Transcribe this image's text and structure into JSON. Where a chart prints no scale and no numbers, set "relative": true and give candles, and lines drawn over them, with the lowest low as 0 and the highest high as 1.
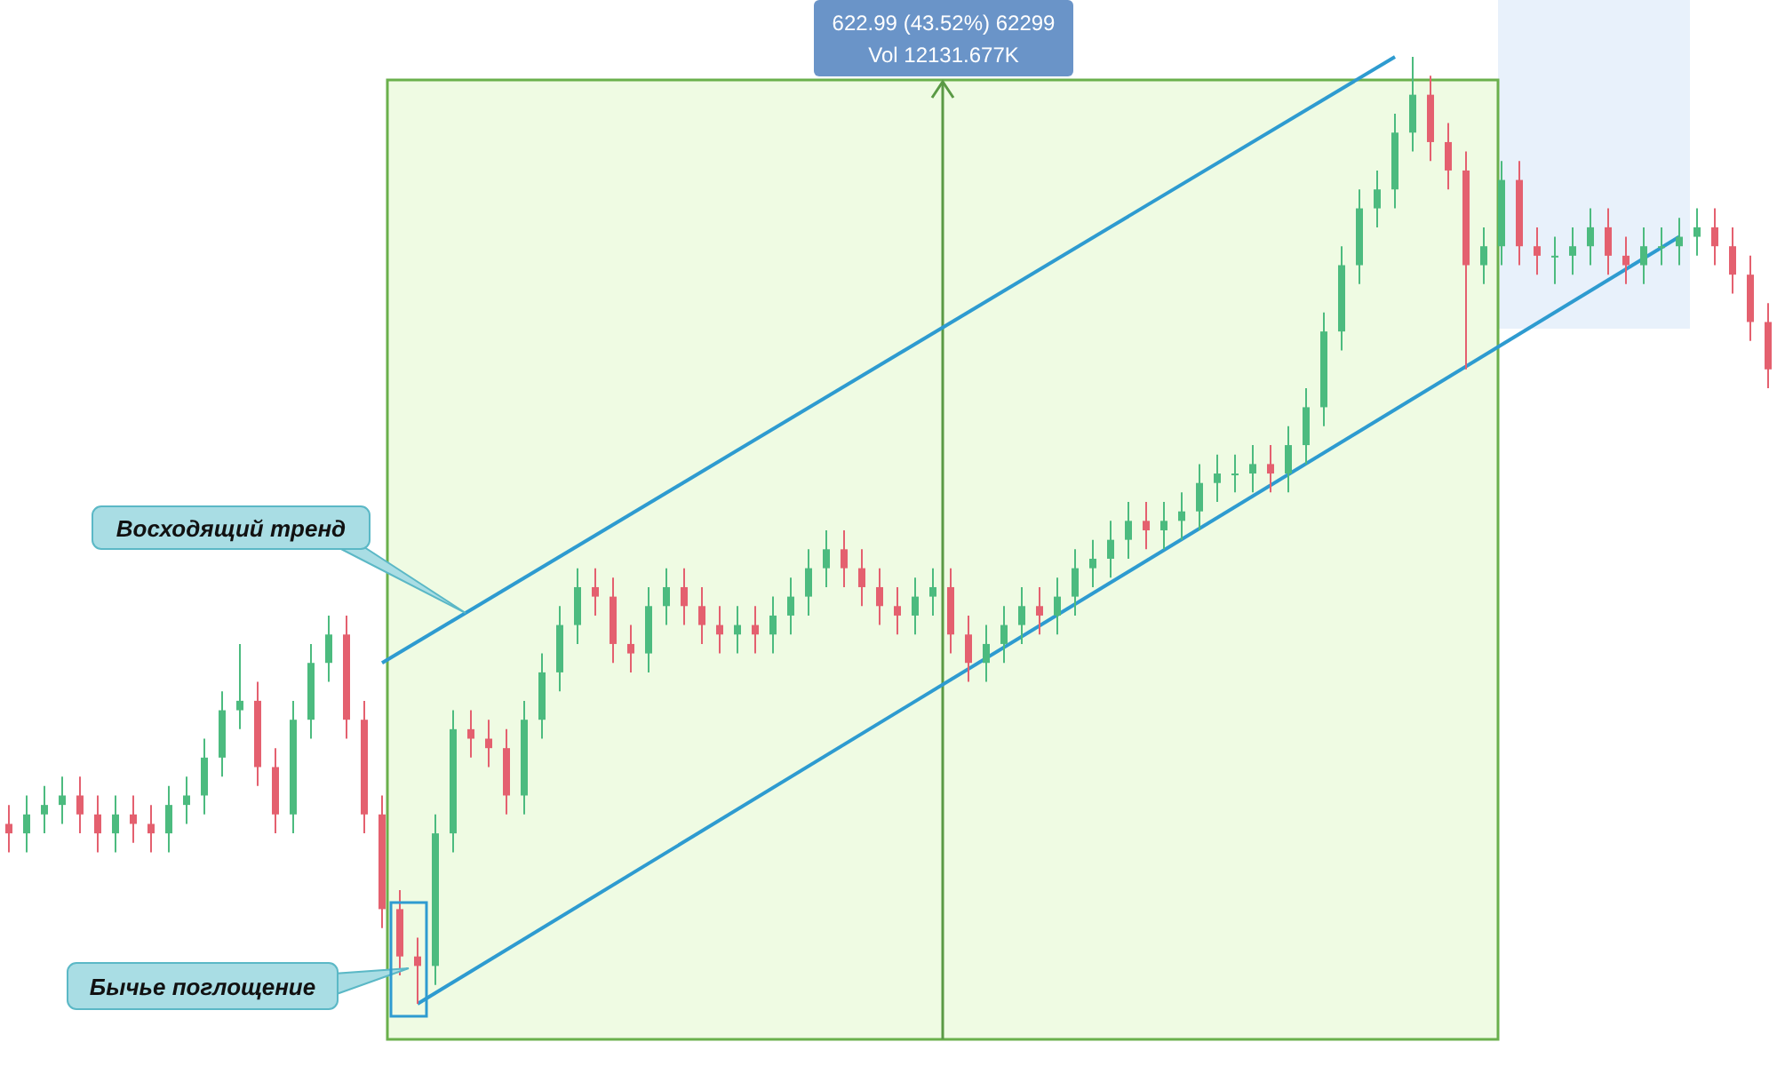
{
  "chart_data": {
    "type": "candlestick",
    "relative": true,
    "categories": [
      null,
      null,
      null,
      null,
      null,
      null,
      null,
      null,
      null,
      null,
      null,
      null,
      null,
      null,
      null,
      null,
      null,
      null,
      null,
      null,
      null,
      null,
      null,
      null,
      null,
      null,
      null,
      null,
      null,
      null,
      null,
      null,
      null,
      null,
      null,
      null,
      null,
      null,
      null,
      null,
      null,
      null,
      null,
      null,
      null,
      null,
      null,
      null,
      null,
      null,
      null,
      null,
      null,
      null,
      null,
      null,
      null,
      null,
      null,
      null,
      null,
      null,
      null,
      null,
      null,
      null,
      null,
      null,
      null,
      null,
      null,
      null,
      null,
      null,
      null,
      null,
      null,
      null,
      null,
      null,
      null,
      null,
      null,
      null,
      null,
      null,
      null,
      null,
      null,
      null,
      null,
      null,
      null,
      null,
      null,
      null,
      null,
      null,
      null,
      null
    ],
    "ohlc": [
      [
        0.19,
        0.21,
        0.16,
        0.18
      ],
      [
        0.18,
        0.22,
        0.16,
        0.2
      ],
      [
        0.2,
        0.23,
        0.18,
        0.21
      ],
      [
        0.21,
        0.24,
        0.19,
        0.22
      ],
      [
        0.22,
        0.24,
        0.18,
        0.2
      ],
      [
        0.2,
        0.22,
        0.16,
        0.18
      ],
      [
        0.18,
        0.22,
        0.16,
        0.2
      ],
      [
        0.2,
        0.22,
        0.17,
        0.19
      ],
      [
        0.19,
        0.21,
        0.16,
        0.18
      ],
      [
        0.18,
        0.23,
        0.16,
        0.21
      ],
      [
        0.21,
        0.24,
        0.19,
        0.22
      ],
      [
        0.22,
        0.28,
        0.2,
        0.26
      ],
      [
        0.26,
        0.33,
        0.24,
        0.31
      ],
      [
        0.31,
        0.38,
        0.29,
        0.32
      ],
      [
        0.32,
        0.34,
        0.23,
        0.25
      ],
      [
        0.25,
        0.27,
        0.18,
        0.2
      ],
      [
        0.2,
        0.32,
        0.18,
        0.3
      ],
      [
        0.3,
        0.38,
        0.28,
        0.36
      ],
      [
        0.36,
        0.41,
        0.34,
        0.39
      ],
      [
        0.39,
        0.41,
        0.28,
        0.3
      ],
      [
        0.3,
        0.32,
        0.18,
        0.2
      ],
      [
        0.2,
        0.22,
        0.08,
        0.1
      ],
      [
        0.1,
        0.12,
        0.03,
        0.05
      ],
      [
        0.05,
        0.07,
        0.0,
        0.04
      ],
      [
        0.04,
        0.2,
        0.02,
        0.18
      ],
      [
        0.18,
        0.31,
        0.16,
        0.29
      ],
      [
        0.29,
        0.31,
        0.26,
        0.28
      ],
      [
        0.28,
        0.3,
        0.25,
        0.27
      ],
      [
        0.27,
        0.29,
        0.2,
        0.22
      ],
      [
        0.22,
        0.32,
        0.2,
        0.3
      ],
      [
        0.3,
        0.37,
        0.28,
        0.35
      ],
      [
        0.35,
        0.42,
        0.33,
        0.4
      ],
      [
        0.4,
        0.46,
        0.38,
        0.44
      ],
      [
        0.44,
        0.46,
        0.41,
        0.43
      ],
      [
        0.43,
        0.45,
        0.36,
        0.38
      ],
      [
        0.38,
        0.4,
        0.35,
        0.37
      ],
      [
        0.37,
        0.44,
        0.35,
        0.42
      ],
      [
        0.42,
        0.46,
        0.4,
        0.44
      ],
      [
        0.44,
        0.46,
        0.4,
        0.42
      ],
      [
        0.42,
        0.44,
        0.38,
        0.4
      ],
      [
        0.4,
        0.42,
        0.37,
        0.39
      ],
      [
        0.39,
        0.42,
        0.37,
        0.4
      ],
      [
        0.4,
        0.42,
        0.37,
        0.39
      ],
      [
        0.39,
        0.43,
        0.37,
        0.41
      ],
      [
        0.41,
        0.45,
        0.39,
        0.43
      ],
      [
        0.43,
        0.48,
        0.41,
        0.46
      ],
      [
        0.46,
        0.5,
        0.44,
        0.48
      ],
      [
        0.48,
        0.5,
        0.44,
        0.46
      ],
      [
        0.46,
        0.48,
        0.42,
        0.44
      ],
      [
        0.44,
        0.46,
        0.4,
        0.42
      ],
      [
        0.42,
        0.44,
        0.39,
        0.41
      ],
      [
        0.41,
        0.45,
        0.39,
        0.43
      ],
      [
        0.43,
        0.46,
        0.41,
        0.44
      ],
      [
        0.44,
        0.46,
        0.37,
        0.39
      ],
      [
        0.39,
        0.41,
        0.34,
        0.36
      ],
      [
        0.36,
        0.4,
        0.34,
        0.38
      ],
      [
        0.38,
        0.42,
        0.36,
        0.4
      ],
      [
        0.4,
        0.44,
        0.38,
        0.42
      ],
      [
        0.42,
        0.44,
        0.39,
        0.41
      ],
      [
        0.41,
        0.45,
        0.39,
        0.43
      ],
      [
        0.43,
        0.48,
        0.41,
        0.46
      ],
      [
        0.46,
        0.49,
        0.44,
        0.47
      ],
      [
        0.47,
        0.51,
        0.45,
        0.49
      ],
      [
        0.49,
        0.53,
        0.47,
        0.51
      ],
      [
        0.51,
        0.53,
        0.48,
        0.5
      ],
      [
        0.5,
        0.53,
        0.48,
        0.51
      ],
      [
        0.51,
        0.54,
        0.49,
        0.52
      ],
      [
        0.52,
        0.57,
        0.5,
        0.55
      ],
      [
        0.55,
        0.58,
        0.53,
        0.56
      ],
      [
        0.56,
        0.58,
        0.54,
        0.56
      ],
      [
        0.56,
        0.59,
        0.54,
        0.57
      ],
      [
        0.57,
        0.59,
        0.54,
        0.56
      ],
      [
        0.56,
        0.61,
        0.54,
        0.59
      ],
      [
        0.59,
        0.65,
        0.57,
        0.63
      ],
      [
        0.63,
        0.73,
        0.61,
        0.71
      ],
      [
        0.71,
        0.8,
        0.69,
        0.78
      ],
      [
        0.78,
        0.86,
        0.76,
        0.84
      ],
      [
        0.84,
        0.88,
        0.82,
        0.86
      ],
      [
        0.86,
        0.94,
        0.84,
        0.92
      ],
      [
        0.92,
        1.0,
        0.9,
        0.96
      ],
      [
        0.96,
        0.98,
        0.89,
        0.91
      ],
      [
        0.91,
        0.93,
        0.86,
        0.88
      ],
      [
        0.88,
        0.9,
        0.67,
        0.78
      ],
      [
        0.78,
        0.82,
        0.76,
        0.8
      ],
      [
        0.8,
        0.89,
        0.78,
        0.87
      ],
      [
        0.87,
        0.89,
        0.78,
        0.8
      ],
      [
        0.8,
        0.82,
        0.77,
        0.79
      ],
      [
        0.79,
        0.81,
        0.76,
        0.79
      ],
      [
        0.79,
        0.82,
        0.77,
        0.8
      ],
      [
        0.8,
        0.84,
        0.78,
        0.82
      ],
      [
        0.82,
        0.84,
        0.77,
        0.79
      ],
      [
        0.79,
        0.81,
        0.76,
        0.78
      ],
      [
        0.78,
        0.82,
        0.76,
        0.8
      ],
      [
        0.8,
        0.82,
        0.78,
        0.8
      ],
      [
        0.8,
        0.83,
        0.78,
        0.81
      ],
      [
        0.81,
        0.84,
        0.79,
        0.82
      ],
      [
        0.82,
        0.84,
        0.78,
        0.8
      ],
      [
        0.8,
        0.82,
        0.75,
        0.77
      ],
      [
        0.77,
        0.79,
        0.7,
        0.72
      ],
      [
        0.72,
        0.74,
        0.65,
        0.67
      ]
    ],
    "series": [
      {
        "type": "line",
        "color": "#2e9bd0",
        "values": [
          null,
          null,
          null,
          null,
          null,
          null,
          null,
          null,
          null,
          null,
          null,
          null,
          null,
          null,
          null,
          null,
          null,
          null,
          null,
          null,
          null,
          0.36,
          null,
          null,
          null,
          null,
          null,
          null,
          null,
          null,
          null,
          null,
          null,
          null,
          null,
          null,
          null,
          null,
          null,
          null,
          null,
          null,
          null,
          null,
          null,
          null,
          null,
          null,
          null,
          null,
          null,
          null,
          null,
          null,
          null,
          null,
          null,
          null,
          null,
          null,
          null,
          null,
          null,
          null,
          null,
          null,
          null,
          null,
          null,
          null,
          null,
          null,
          null,
          null,
          null,
          null,
          null,
          null,
          1.0,
          null,
          null,
          null,
          null,
          null,
          null,
          null,
          null,
          null,
          null,
          null,
          null,
          null,
          null,
          null,
          null,
          null,
          null,
          null,
          null,
          null
        ]
      },
      {
        "type": "line",
        "color": "#2e9bd0",
        "values": [
          null,
          null,
          null,
          null,
          null,
          null,
          null,
          null,
          null,
          null,
          null,
          null,
          null,
          null,
          null,
          null,
          null,
          null,
          null,
          null,
          null,
          null,
          null,
          0.0,
          null,
          null,
          null,
          null,
          null,
          null,
          null,
          null,
          null,
          null,
          null,
          null,
          null,
          null,
          null,
          null,
          null,
          null,
          null,
          null,
          null,
          null,
          null,
          null,
          null,
          null,
          null,
          null,
          null,
          null,
          null,
          null,
          null,
          null,
          null,
          null,
          null,
          null,
          null,
          null,
          null,
          null,
          null,
          null,
          null,
          null,
          null,
          null,
          null,
          null,
          null,
          null,
          null,
          null,
          null,
          null,
          null,
          null,
          null,
          null,
          null,
          null,
          null,
          null,
          null,
          null,
          null,
          null,
          null,
          null,
          0.81,
          null,
          null,
          null,
          null,
          null
        ]
      }
    ],
    "annotations": [
      "622.99 (43.52%) 62299",
      "Vol 12131.677K",
      "Восходящий тренд",
      "Бычье поглощение"
    ]
  }
}
